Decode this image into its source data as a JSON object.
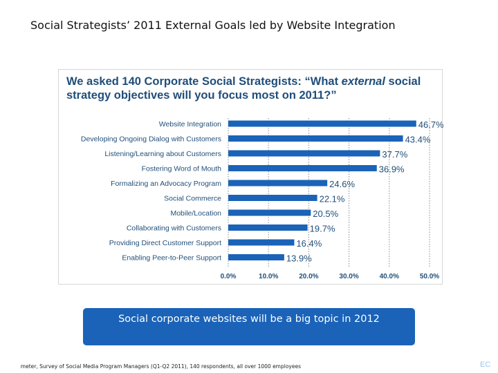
{
  "slide": {
    "title": "Social Strategists’ 2011 External Goals led by Website Integration",
    "callout": "Social corporate websites will be a big topic in 2012",
    "source": "meter, Survey of Social Media Program Managers (Q1-Q2 2011), 140 respondents, all over 1000 employees",
    "corner_mark": "EC"
  },
  "chart_data": {
    "type": "bar",
    "orientation": "horizontal",
    "title_parts": [
      "We asked 140 Corporate Social Strategists: “What ",
      "external",
      " social strategy objectives will you focus most on 2011?”"
    ],
    "categories": [
      "Website Integration",
      "Developing Ongoing Dialog with Customers",
      "Listening/Learning about Customers",
      "Fostering Word of Mouth",
      "Formalizing an Advocacy Program",
      "Social Commerce",
      "Mobile/Location",
      "Collaborating with Customers",
      "Providing Direct Customer Support",
      "Enabling Peer-to-Peer Support"
    ],
    "values": [
      46.7,
      43.4,
      37.7,
      36.9,
      24.6,
      22.1,
      20.5,
      19.7,
      16.4,
      13.9
    ],
    "data_labels": [
      "46.7%",
      "43.4%",
      "37.7%",
      "36.9%",
      "24.6%",
      "22.1%",
      "20.5%",
      "19.7%",
      "16.4%",
      "13.9%"
    ],
    "xlim": [
      0,
      50
    ],
    "xticks": [
      "0.0%",
      "10.0%",
      "20.0%",
      "30.0%",
      "40.0%",
      "50.0%"
    ],
    "grid": true,
    "bar_color": "#1a63b8",
    "title_color": "#1f4e79"
  }
}
